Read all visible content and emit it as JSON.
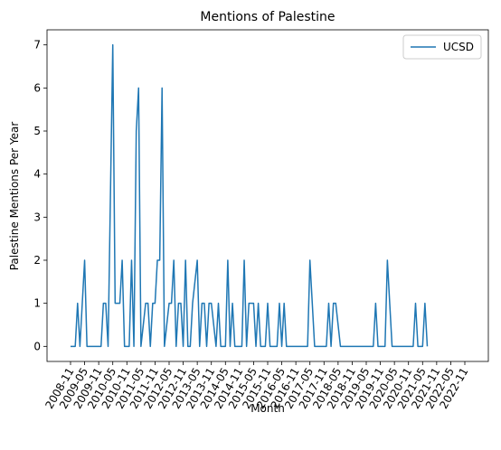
{
  "chart_data": {
    "type": "line",
    "title": "Mentions of Palestine",
    "xlabel": "Month",
    "ylabel": "Palestine Mentions Per Year",
    "ylim": [
      -0.35,
      7.35
    ],
    "yticks": [
      0,
      1,
      2,
      3,
      4,
      5,
      6,
      7
    ],
    "x_range": [
      "2008-11",
      "2022-11"
    ],
    "xticks": [
      "2008-11",
      "2009-05",
      "2009-11",
      "2010-05",
      "2010-11",
      "2011-05",
      "2011-11",
      "2012-05",
      "2012-11",
      "2013-05",
      "2013-11",
      "2014-05",
      "2014-11",
      "2015-05",
      "2015-11",
      "2016-05",
      "2016-11",
      "2017-05",
      "2017-11",
      "2018-05",
      "2018-11",
      "2019-05",
      "2019-11",
      "2020-05",
      "2020-11",
      "2021-05",
      "2021-11",
      "2022-05",
      "2022-11"
    ],
    "legend_position": "top-right",
    "grid": false,
    "series": [
      {
        "name": "UCSD",
        "color": "#1f77b4",
        "points": [
          [
            "2008-11",
            0
          ],
          [
            "2009-01",
            0
          ],
          [
            "2009-02",
            1
          ],
          [
            "2009-03",
            0
          ],
          [
            "2009-05",
            2
          ],
          [
            "2009-06",
            0
          ],
          [
            "2009-08",
            0
          ],
          [
            "2009-10",
            0
          ],
          [
            "2009-12",
            0
          ],
          [
            "2010-01",
            1
          ],
          [
            "2010-02",
            1
          ],
          [
            "2010-03",
            0
          ],
          [
            "2010-05",
            7
          ],
          [
            "2010-06",
            1
          ],
          [
            "2010-07",
            1
          ],
          [
            "2010-08",
            1
          ],
          [
            "2010-09",
            2
          ],
          [
            "2010-10",
            0
          ],
          [
            "2010-12",
            0
          ],
          [
            "2011-01",
            2
          ],
          [
            "2011-02",
            0
          ],
          [
            "2011-03",
            5
          ],
          [
            "2011-04",
            6
          ],
          [
            "2011-05",
            0
          ],
          [
            "2011-06",
            0.5
          ],
          [
            "2011-07",
            1
          ],
          [
            "2011-08",
            1
          ],
          [
            "2011-09",
            0
          ],
          [
            "2011-10",
            1
          ],
          [
            "2011-11",
            1
          ],
          [
            "2011-12",
            2
          ],
          [
            "2012-01",
            2
          ],
          [
            "2012-02",
            6
          ],
          [
            "2012-03",
            0
          ],
          [
            "2012-04",
            0.5
          ],
          [
            "2012-05",
            1
          ],
          [
            "2012-06",
            1
          ],
          [
            "2012-07",
            2
          ],
          [
            "2012-08",
            0
          ],
          [
            "2012-09",
            1
          ],
          [
            "2012-10",
            1
          ],
          [
            "2012-11",
            0
          ],
          [
            "2012-12",
            2
          ],
          [
            "2013-01",
            0
          ],
          [
            "2013-02",
            0
          ],
          [
            "2013-03",
            1
          ],
          [
            "2013-05",
            2
          ],
          [
            "2013-06",
            0
          ],
          [
            "2013-07",
            1
          ],
          [
            "2013-08",
            1
          ],
          [
            "2013-09",
            0
          ],
          [
            "2013-10",
            1
          ],
          [
            "2013-11",
            1
          ],
          [
            "2014-01",
            0
          ],
          [
            "2014-02",
            1
          ],
          [
            "2014-03",
            0
          ],
          [
            "2014-04",
            0
          ],
          [
            "2014-05",
            0
          ],
          [
            "2014-06",
            2
          ],
          [
            "2014-07",
            0
          ],
          [
            "2014-08",
            1
          ],
          [
            "2014-09",
            0
          ],
          [
            "2014-10",
            0
          ],
          [
            "2014-11",
            0
          ],
          [
            "2014-12",
            0
          ],
          [
            "2015-01",
            2
          ],
          [
            "2015-02",
            0
          ],
          [
            "2015-03",
            1
          ],
          [
            "2015-04",
            1
          ],
          [
            "2015-05",
            1
          ],
          [
            "2015-06",
            0
          ],
          [
            "2015-07",
            1
          ],
          [
            "2015-08",
            0
          ],
          [
            "2015-09",
            0
          ],
          [
            "2015-10",
            0
          ],
          [
            "2015-11",
            1
          ],
          [
            "2015-12",
            0
          ],
          [
            "2016-01",
            0
          ],
          [
            "2016-03",
            0
          ],
          [
            "2016-04",
            1
          ],
          [
            "2016-05",
            0
          ],
          [
            "2016-06",
            1
          ],
          [
            "2016-07",
            0
          ],
          [
            "2016-08",
            0
          ],
          [
            "2016-10",
            0
          ],
          [
            "2016-11",
            0
          ],
          [
            "2017-02",
            0
          ],
          [
            "2017-04",
            0
          ],
          [
            "2017-05",
            2
          ],
          [
            "2017-06",
            1
          ],
          [
            "2017-07",
            0
          ],
          [
            "2017-09",
            0
          ],
          [
            "2017-11",
            0
          ],
          [
            "2017-12",
            0
          ],
          [
            "2018-01",
            1
          ],
          [
            "2018-02",
            0
          ],
          [
            "2018-03",
            1
          ],
          [
            "2018-04",
            1
          ],
          [
            "2018-05",
            0.5
          ],
          [
            "2018-06",
            0
          ],
          [
            "2018-09",
            0
          ],
          [
            "2018-11",
            0
          ],
          [
            "2019-02",
            0
          ],
          [
            "2019-05",
            0
          ],
          [
            "2019-08",
            0
          ],
          [
            "2019-09",
            1
          ],
          [
            "2019-10",
            0
          ],
          [
            "2019-11",
            0
          ],
          [
            "2019-12",
            0
          ],
          [
            "2020-01",
            0
          ],
          [
            "2020-02",
            2
          ],
          [
            "2020-03",
            1
          ],
          [
            "2020-04",
            0
          ],
          [
            "2020-07",
            0
          ],
          [
            "2020-10",
            0
          ],
          [
            "2020-11",
            0
          ],
          [
            "2021-01",
            0
          ],
          [
            "2021-02",
            1
          ],
          [
            "2021-03",
            0
          ],
          [
            "2021-04",
            0
          ],
          [
            "2021-05",
            0
          ],
          [
            "2021-06",
            1
          ],
          [
            "2021-07",
            0
          ]
        ]
      }
    ]
  }
}
